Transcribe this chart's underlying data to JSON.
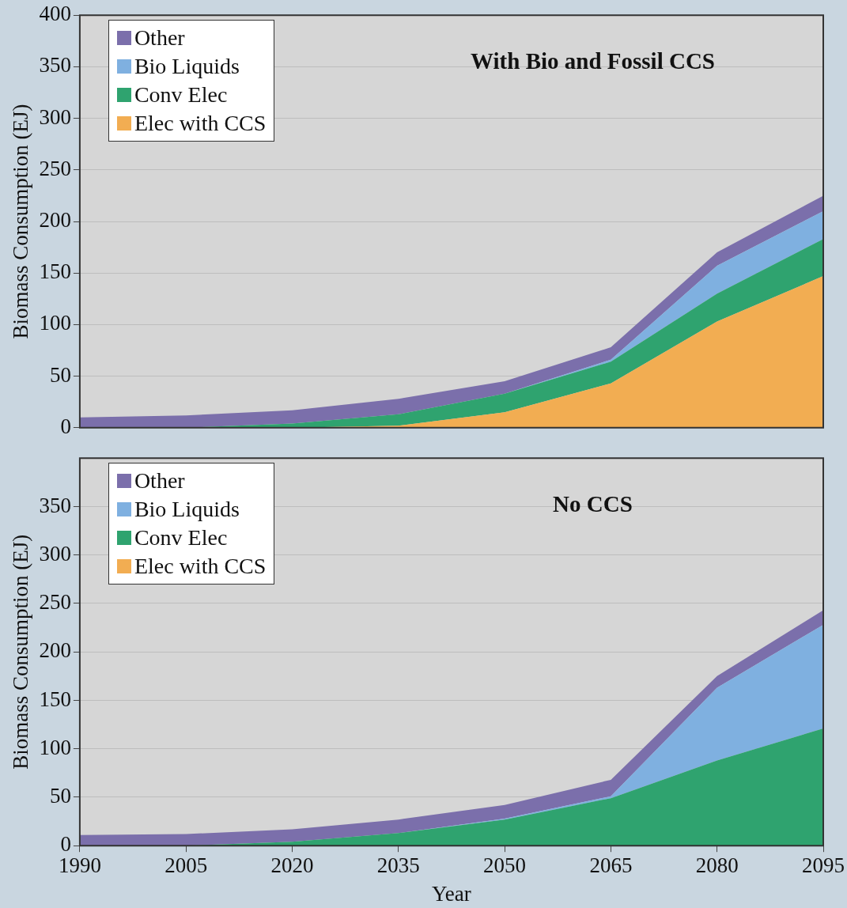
{
  "chart_data": [
    {
      "type": "area",
      "annotations": [
        "With Bio and Fossil CCS"
      ],
      "ylabel": "Biomass Consumption (EJ)",
      "x": [
        1990,
        2005,
        2020,
        2035,
        2050,
        2065,
        2080,
        2095
      ],
      "xlim": [
        1990,
        2095
      ],
      "xticks": [
        1990,
        2005,
        2020,
        2035,
        2050,
        2065,
        2080,
        2095
      ],
      "ylim": [
        0,
        400
      ],
      "yticks": [
        0,
        50,
        100,
        150,
        200,
        250,
        300,
        350,
        400
      ],
      "stacked": true,
      "grid": "y",
      "legend": "top left",
      "tick_labels": "y",
      "series": [
        {
          "name": "Elec with CCS",
          "color": "#f2ad52",
          "values": [
            0,
            0,
            0,
            2,
            15,
            43,
            103,
            147
          ]
        },
        {
          "name": "Conv Elec",
          "color": "#2fa36f",
          "values": [
            0,
            0,
            4,
            11,
            18,
            21,
            27,
            36
          ]
        },
        {
          "name": "Bio Liquids",
          "color": "#7fb0e0",
          "values": [
            0,
            0,
            0,
            0,
            0,
            2,
            27,
            27
          ]
        },
        {
          "name": "Other",
          "color": "#7b6fab",
          "values": [
            10,
            12,
            13,
            15,
            12,
            12,
            13,
            15
          ]
        }
      ]
    },
    {
      "type": "area",
      "annotations": [
        "No CCS"
      ],
      "xlabel": "Year",
      "ylabel": "Biomass Consumption (EJ)",
      "x": [
        1990,
        2005,
        2020,
        2035,
        2050,
        2065,
        2080,
        2095
      ],
      "xlim": [
        1990,
        2095
      ],
      "xticks": [
        1990,
        2005,
        2020,
        2035,
        2050,
        2065,
        2080,
        2095
      ],
      "ylim": [
        0,
        400
      ],
      "yticks": [
        0,
        50,
        100,
        150,
        200,
        250,
        300,
        350
      ],
      "stacked": true,
      "grid": "y",
      "legend": "top left",
      "series": [
        {
          "name": "Elec with CCS",
          "color": "#f2ad52",
          "values": [
            null,
            null,
            null,
            null,
            null,
            null,
            null,
            null
          ]
        },
        {
          "name": "Conv Elec",
          "color": "#2fa36f",
          "values": [
            0,
            0,
            4,
            13,
            27,
            49,
            88,
            121
          ]
        },
        {
          "name": "Bio Liquids",
          "color": "#7fb0e0",
          "values": [
            0,
            0,
            0,
            0,
            1,
            2,
            75,
            107
          ]
        },
        {
          "name": "Other",
          "color": "#7b6fab",
          "values": [
            11,
            12,
            13,
            14,
            14,
            17,
            12,
            15
          ]
        }
      ]
    }
  ]
}
